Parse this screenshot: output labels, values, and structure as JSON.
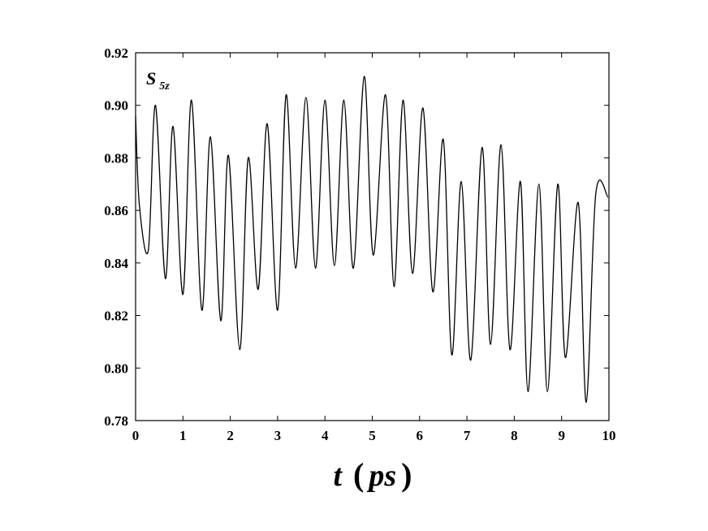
{
  "chart_data": {
    "type": "line",
    "title": "",
    "series_label": {
      "main": "S",
      "sub": "5z"
    },
    "xlabel": {
      "variable": "t",
      "unit": "ps"
    },
    "ylabel": "",
    "xlim": [
      0,
      10
    ],
    "ylim": [
      0.78,
      0.92
    ],
    "x_ticks": [
      "0",
      "1",
      "2",
      "3",
      "4",
      "5",
      "6",
      "7",
      "8",
      "9",
      "10"
    ],
    "y_ticks": [
      "0.78",
      "0.80",
      "0.82",
      "0.84",
      "0.86",
      "0.88",
      "0.90",
      "0.92"
    ],
    "grid": false,
    "series": [
      {
        "color": "#000000",
        "x": [
          0.0,
          0.08,
          0.27,
          0.42,
          0.63,
          0.79,
          1.0,
          1.18,
          1.4,
          1.58,
          1.8,
          1.96,
          2.2,
          2.38,
          2.59,
          2.78,
          3.0,
          3.18,
          3.38,
          3.6,
          3.8,
          4.0,
          4.2,
          4.4,
          4.6,
          4.83,
          5.02,
          5.28,
          5.46,
          5.65,
          5.85,
          6.07,
          6.28,
          6.5,
          6.68,
          6.88,
          7.08,
          7.32,
          7.5,
          7.72,
          7.91,
          8.13,
          8.29,
          8.52,
          8.7,
          8.92,
          9.08,
          9.35,
          9.52,
          9.72,
          9.98
        ],
        "y": [
          0.896,
          0.862,
          0.845,
          0.9,
          0.834,
          0.892,
          0.828,
          0.902,
          0.822,
          0.888,
          0.818,
          0.881,
          0.807,
          0.88,
          0.83,
          0.893,
          0.822,
          0.904,
          0.838,
          0.903,
          0.838,
          0.902,
          0.839,
          0.902,
          0.838,
          0.911,
          0.843,
          0.904,
          0.831,
          0.902,
          0.836,
          0.899,
          0.829,
          0.887,
          0.805,
          0.871,
          0.803,
          0.884,
          0.809,
          0.885,
          0.807,
          0.871,
          0.791,
          0.87,
          0.791,
          0.87,
          0.804,
          0.863,
          0.787,
          0.866,
          0.865
        ]
      }
    ]
  }
}
